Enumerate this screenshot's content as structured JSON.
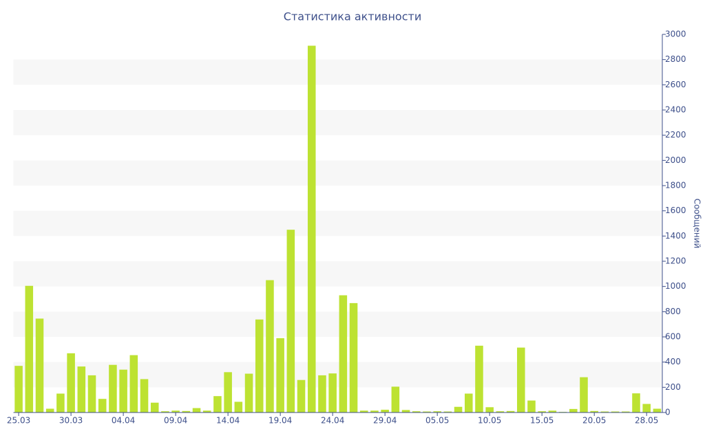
{
  "chart_data": {
    "type": "bar",
    "title": "Статистика активности",
    "y_label": "Сообщений",
    "color": "#bde232",
    "categories": [
      "25.03",
      null,
      null,
      null,
      null,
      "30.03",
      null,
      null,
      null,
      null,
      "04.04",
      null,
      null,
      null,
      null,
      "09.04",
      null,
      null,
      null,
      null,
      "14.04",
      null,
      null,
      null,
      null,
      "19.04",
      null,
      null,
      null,
      null,
      "24.04",
      null,
      null,
      null,
      null,
      "29.04",
      null,
      null,
      null,
      null,
      "05.05",
      null,
      null,
      null,
      null,
      "10.05",
      null,
      null,
      null,
      null,
      "15.05",
      null,
      null,
      null,
      null,
      "20.05",
      null,
      null,
      null,
      null,
      "28.05",
      null
    ],
    "values": [
      370,
      1005,
      745,
      30,
      150,
      470,
      365,
      295,
      108,
      378,
      340,
      455,
      265,
      78,
      10,
      15,
      12,
      35,
      15,
      130,
      320,
      85,
      308,
      738,
      1050,
      590,
      1450,
      258,
      2910,
      295,
      310,
      930,
      868,
      15,
      15,
      22,
      205,
      20,
      10,
      8,
      10,
      8,
      45,
      150,
      530,
      42,
      10,
      12,
      515,
      95,
      10,
      15,
      5,
      28,
      280,
      12,
      8,
      8,
      8,
      152,
      68,
      30
    ],
    "ylim": [
      0,
      3000
    ],
    "yticks": [
      0,
      200,
      400,
      600,
      800,
      1000,
      1200,
      1400,
      1600,
      1800,
      2000,
      2200,
      2400,
      2600,
      2800,
      3000
    ],
    "y_axis_side": "right",
    "banded_grid": true
  }
}
